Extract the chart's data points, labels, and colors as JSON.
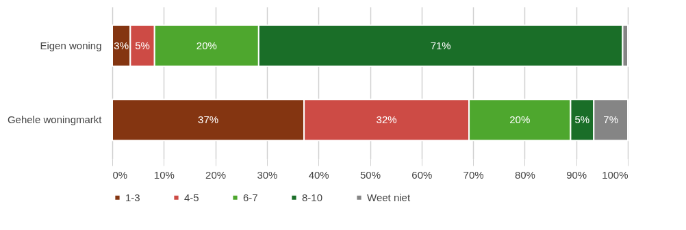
{
  "chart_data": {
    "type": "bar",
    "orientation": "horizontal",
    "stacked": true,
    "categories": [
      "Eigen woning",
      "Gehele woningmarkt"
    ],
    "series": [
      {
        "name": "1-3",
        "color": "#843511",
        "values": [
          3.5,
          37.2
        ],
        "value_labels": [
          "3%",
          "37%"
        ]
      },
      {
        "name": "4-5",
        "color": "#cd4b45",
        "values": [
          4.7,
          32.0
        ],
        "value_labels": [
          "5%",
          "32%"
        ]
      },
      {
        "name": "6-7",
        "color": "#4ea72e",
        "values": [
          20.2,
          19.7
        ],
        "value_labels": [
          "20%",
          "20%"
        ]
      },
      {
        "name": "8-10",
        "color": "#1a6e28",
        "values": [
          70.6,
          4.5
        ],
        "value_labels": [
          "71%",
          "5%"
        ]
      },
      {
        "name": "Weet niet",
        "color": "#858585",
        "values": [
          1.0,
          6.6
        ],
        "value_labels": [
          null,
          "7%"
        ]
      }
    ],
    "xlim": [
      0,
      100
    ],
    "xticks": [
      {
        "value": 0,
        "label": "0%"
      },
      {
        "value": 10,
        "label": "10%"
      },
      {
        "value": 20,
        "label": "20%"
      },
      {
        "value": 30,
        "label": "30%"
      },
      {
        "value": 40,
        "label": "40%"
      },
      {
        "value": 50,
        "label": "50%"
      },
      {
        "value": 60,
        "label": "60%"
      },
      {
        "value": 70,
        "label": "70%"
      },
      {
        "value": 80,
        "label": "80%"
      },
      {
        "value": 90,
        "label": "90%"
      },
      {
        "value": 100,
        "label": "100%"
      }
    ],
    "grid": "x",
    "legend": "bottom"
  }
}
